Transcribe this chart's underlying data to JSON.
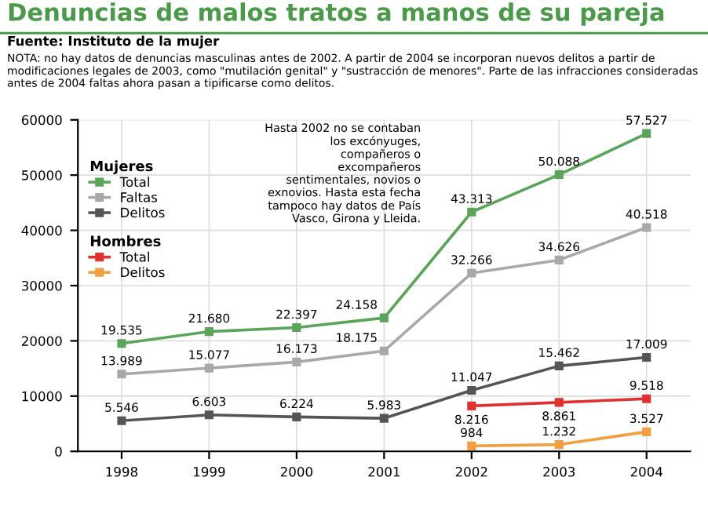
{
  "chart_data": {
    "type": "line",
    "title": "Denuncias de malos tratos a manos de su pareja",
    "subtitle": "Fuente: Instituto de la mujer",
    "annotations": [
      "Hombres",
      "NOTA: no hay datos de denuncias masculinas antes de 2002. A partir de 2004 se incorporan nuevos delitos a partir de modificaciones legales de 2003, como \"mutilación genital\" y \"sustracción de menores\". Parte de las infracciones consideradas antes de 2004 faltas ahora pasan a tipificarse como delitos.",
      "Hasta 2002 no se contaban\nlos excónyuges,\ncompañeros o\nexcompañeros\nsentimentales, novios o\nexnovios. Hasta esta fecha\ntampoco hay datos de País\nVasco, Girona y Lleida."
    ],
    "legend_title": "Mujeres",
    "legend": "top left",
    "categories": [
      "1998",
      "1999",
      "2000",
      "2001",
      "2002",
      "2003",
      "2004"
    ],
    "ylim": [
      0,
      60000
    ],
    "yticks": [
      0,
      10000,
      20000,
      30000,
      40000,
      50000,
      60000
    ],
    "grid": true,
    "marker": "square",
    "line_style": "solid",
    "series": [
      {
        "name": "Total",
        "color": "#5aa55a",
        "values": [
          19535,
          21680,
          22397,
          24158,
          43313,
          50088,
          57527
        ],
        "value_labels": [
          "19.535",
          "21.680",
          "22.397",
          "24.158",
          "43.313",
          "50.088",
          "57.527"
        ]
      },
      {
        "name": "Faltas",
        "color": "#a8a8a8",
        "values": [
          13989,
          15077,
          16173,
          18175,
          32266,
          34626,
          40518
        ],
        "value_labels": [
          "13.989",
          "15.077",
          "16.173",
          "18.175",
          "32.266",
          "34.626",
          "40.518"
        ]
      },
      {
        "name": "Delitos",
        "color": "#555555",
        "values": [
          5546,
          6603,
          6224,
          5983,
          11047,
          15462,
          17009
        ],
        "value_labels": [
          "5.546",
          "6.603",
          "6.224",
          "5.983",
          "11.047",
          "15.462",
          "17.009"
        ]
      },
      {
        "name": "Total",
        "color": "#e03030",
        "values": [
          null,
          null,
          null,
          null,
          8216,
          8861,
          9518
        ],
        "value_labels": [
          null,
          null,
          null,
          null,
          "8.216",
          "8.861",
          "9.518"
        ]
      },
      {
        "name": "Delitos",
        "color": "#f0a040",
        "values": [
          null,
          null,
          null,
          null,
          984,
          1232,
          3527
        ],
        "value_labels": [
          null,
          null,
          null,
          null,
          "984",
          "1.232",
          "3.527"
        ]
      }
    ]
  }
}
